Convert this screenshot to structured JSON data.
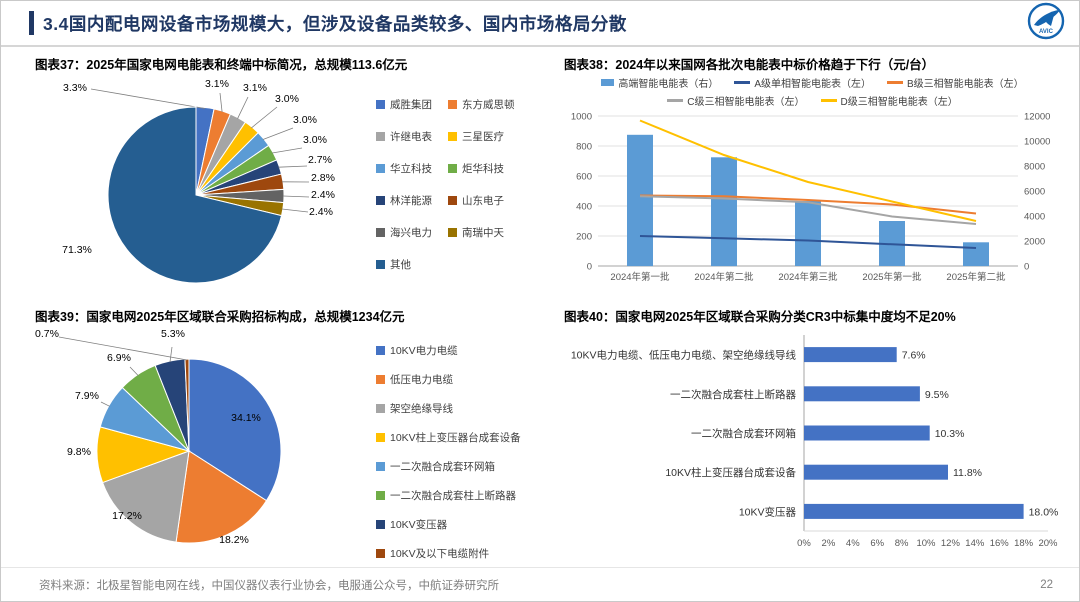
{
  "header": {
    "title": "3.4国内配电网设备市场规模大，但涉及设备品类较多、国内市场格局分散",
    "logo_label": "AVIC"
  },
  "footer": {
    "source": "资料来源：北极星智能电网在线，中国仪器仪表行业协会，电服通公众号，中航证券研究所",
    "page": "22"
  },
  "chart_data": [
    {
      "id": "chart37",
      "type": "pie",
      "title": "图表37：2025年国家电网电能表和终端中标简况，总规模113.6亿元",
      "labels": [
        "威胜集团",
        "东方威思顿",
        "许继电表",
        "三星医疗",
        "华立科技",
        "炬华科技",
        "林洋能源",
        "山东电子",
        "海兴电力",
        "南瑞中天",
        "其他"
      ],
      "values": [
        3.3,
        3.1,
        3.1,
        3.0,
        3.0,
        3.0,
        2.7,
        2.8,
        2.4,
        2.4,
        71.3
      ],
      "colors": [
        "#4472C4",
        "#ED7D31",
        "#A5A5A5",
        "#FFC000",
        "#5B9BD5",
        "#70AD47",
        "#264478",
        "#9E480E",
        "#636363",
        "#997300",
        "#255E91"
      ],
      "legend_position": "right"
    },
    {
      "id": "chart38",
      "type": "combo",
      "title": "图表38：2024年以来国网各批次电能表中标价格趋于下行（元/台）",
      "categories": [
        "2024年第一批",
        "2024年第二批",
        "2024年第三批",
        "2025年第一批",
        "2025年第二批"
      ],
      "bar_series": {
        "name": "高端智能电能表（右）",
        "axis": "right",
        "color": "#5B9BD5",
        "values": [
          10500,
          8700,
          5200,
          3600,
          1900
        ]
      },
      "line_series": [
        {
          "name": "A级单相智能电能表（左）",
          "color": "#2F5597",
          "values": [
            200,
            185,
            170,
            145,
            120
          ]
        },
        {
          "name": "B级三相智能电能表（左）",
          "color": "#ED7D31",
          "values": [
            470,
            465,
            440,
            410,
            350
          ]
        },
        {
          "name": "C级三相智能电能表（左）",
          "color": "#A5A5A5",
          "values": [
            465,
            450,
            425,
            330,
            280
          ]
        },
        {
          "name": "D级三相智能电能表（左）",
          "color": "#FFC000",
          "values": [
            970,
            740,
            560,
            430,
            300
          ]
        }
      ],
      "left_axis": {
        "min": 0,
        "max": 1000,
        "step": 200
      },
      "right_axis": {
        "min": 0,
        "max": 12000,
        "step": 2000
      },
      "grid": true,
      "legend_position": "top"
    },
    {
      "id": "chart39",
      "type": "pie",
      "title": "图表39：国家电网2025年区域联合采购招标构成，总规模1234亿元",
      "labels": [
        "10KV电力电缆",
        "低压电力电缆",
        "架空绝缘导线",
        "10KV柱上变压器台成套设备",
        "一二次融合成套环网箱",
        "一二次融合成套柱上断路器",
        "10KV变压器",
        "10KV及以下电缆附件"
      ],
      "values": [
        34.1,
        18.2,
        17.2,
        9.8,
        7.9,
        6.9,
        5.3,
        0.7
      ],
      "colors": [
        "#4472C4",
        "#ED7D31",
        "#A5A5A5",
        "#FFC000",
        "#5B9BD5",
        "#70AD47",
        "#264478",
        "#9E480E"
      ],
      "legend_position": "right"
    },
    {
      "id": "chart40",
      "type": "bar",
      "orientation": "horizontal",
      "title": "图表40：国家电网2025年区域联合采购分类CR3中标集中度均不足20%",
      "categories": [
        "10KV电力电缆、低压电力电缆、架空绝缘线导线",
        "一二次融合成套柱上断路器",
        "一二次融合成套环网箱",
        "10KV柱上变压器台成套设备",
        "10KV变压器"
      ],
      "values": [
        7.6,
        9.5,
        10.3,
        11.8,
        18.0
      ],
      "bar_color": "#4472C4",
      "xlim": [
        0,
        20
      ],
      "x_ticks": [
        "0%",
        "2%",
        "4%",
        "6%",
        "8%",
        "10%",
        "12%",
        "14%",
        "16%",
        "18%",
        "20%"
      ]
    }
  ]
}
